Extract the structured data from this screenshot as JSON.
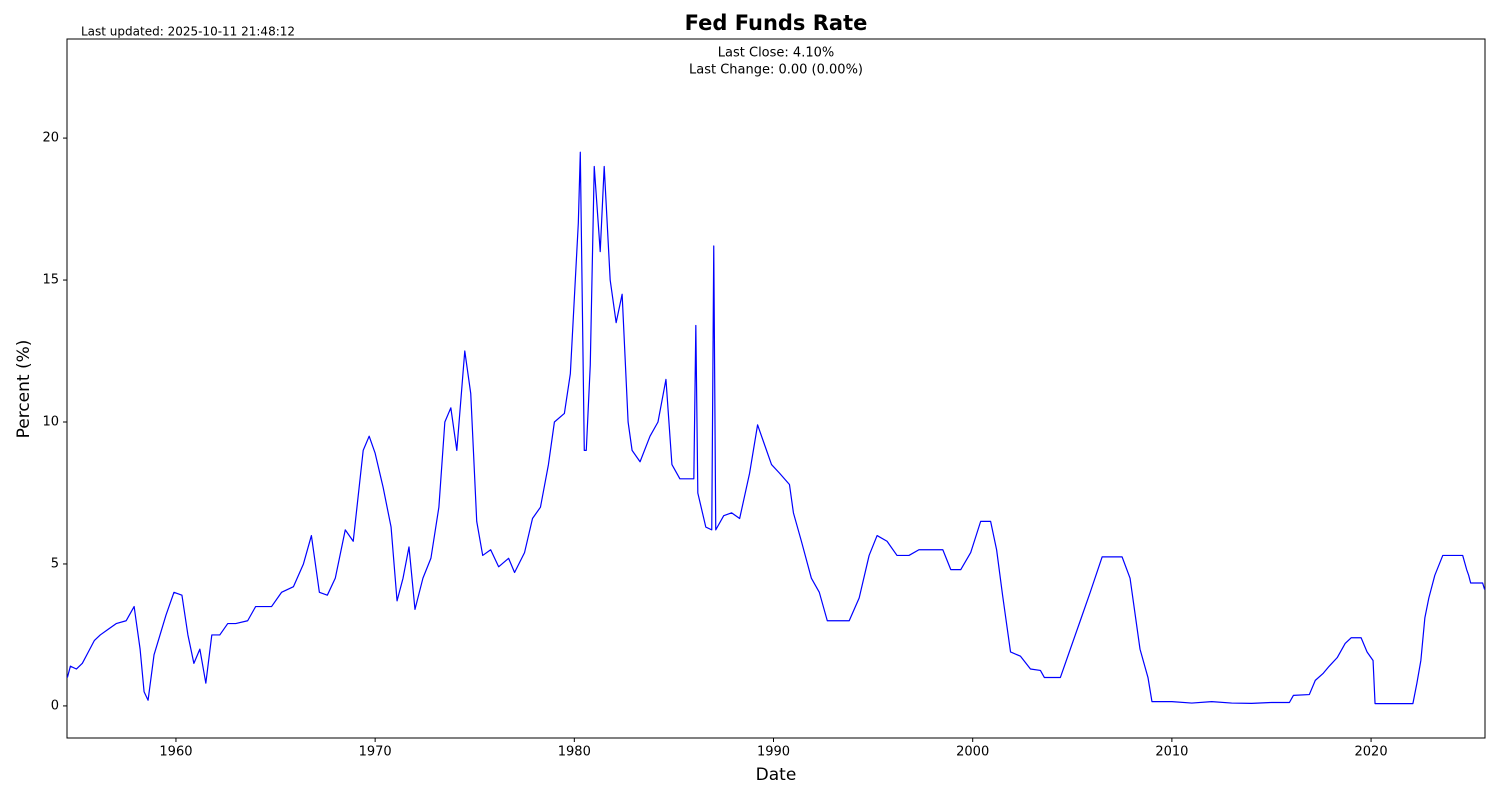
{
  "chart_data": {
    "type": "line",
    "title": "Fed Funds Rate",
    "subtitle": "Last updated: 2025-10-11 21:48:12",
    "annotations": [
      "Last Close: 4.10%",
      "Last Change: 0.00 (0.00%)"
    ],
    "x_label": "Date",
    "y_label": "Percent (%)",
    "xlim": [
      1954.53,
      2025.72
    ],
    "ylim": [
      -1.13,
      23.49
    ],
    "xticks": [
      1960,
      1970,
      1980,
      1990,
      2000,
      2010,
      2020
    ],
    "yticks": [
      0,
      5,
      10,
      15,
      20
    ],
    "grid": false,
    "x": [
      1954.55,
      1954.7,
      1955.0,
      1955.3,
      1955.6,
      1955.9,
      1956.2,
      1956.6,
      1957.0,
      1957.5,
      1957.9,
      1958.2,
      1958.4,
      1958.6,
      1958.9,
      1959.2,
      1959.5,
      1959.9,
      1960.3,
      1960.6,
      1960.9,
      1961.2,
      1961.5,
      1961.8,
      1962.2,
      1962.6,
      1963.0,
      1963.6,
      1964.0,
      1964.8,
      1965.3,
      1965.9,
      1966.4,
      1966.8,
      1967.2,
      1967.6,
      1968.0,
      1968.5,
      1968.9,
      1969.4,
      1969.7,
      1970.0,
      1970.4,
      1970.8,
      1971.1,
      1971.4,
      1971.7,
      1972.0,
      1972.4,
      1972.8,
      1973.2,
      1973.5,
      1973.8,
      1974.1,
      1974.5,
      1974.8,
      1975.1,
      1975.4,
      1975.8,
      1976.2,
      1976.7,
      1977.0,
      1977.5,
      1977.9,
      1978.3,
      1978.7,
      1979.0,
      1979.5,
      1979.8,
      1980.2,
      1980.3,
      1980.5,
      1980.6,
      1980.8,
      1981.0,
      1981.3,
      1981.5,
      1981.8,
      1982.1,
      1982.4,
      1982.7,
      1982.9,
      1983.3,
      1983.8,
      1984.2,
      1984.6,
      1984.9,
      1985.3,
      1985.8,
      1986.0,
      1986.1,
      1986.2,
      1986.6,
      1986.9,
      1987.0,
      1987.1,
      1987.5,
      1987.9,
      1988.3,
      1988.8,
      1989.2,
      1989.5,
      1989.9,
      1990.3,
      1990.8,
      1991.0,
      1991.4,
      1991.9,
      1992.3,
      1992.7,
      1993.2,
      1993.8,
      1994.3,
      1994.8,
      1995.2,
      1995.7,
      1996.2,
      1996.8,
      1997.3,
      1997.9,
      1998.5,
      1998.9,
      1999.4,
      1999.9,
      2000.4,
      2000.9,
      2001.2,
      2001.5,
      2001.9,
      2002.4,
      2002.9,
      2003.4,
      2003.6,
      2004.4,
      2004.9,
      2005.4,
      2005.9,
      2006.5,
      2007.5,
      2007.9,
      2008.2,
      2008.4,
      2008.8,
      2009.0,
      2010.0,
      2011.0,
      2012.0,
      2013.0,
      2014.0,
      2015.0,
      2015.9,
      2016.1,
      2016.9,
      2017.2,
      2017.6,
      2017.9,
      2018.3,
      2018.7,
      2019.0,
      2019.5,
      2019.8,
      2020.1,
      2020.2,
      2021.0,
      2022.1,
      2022.3,
      2022.5,
      2022.7,
      2022.9,
      2023.2,
      2023.6,
      2024.6,
      2024.8,
      2024.9,
      2025.0,
      2025.6,
      2025.7
    ],
    "series": [
      {
        "name": "Fed Funds Rate",
        "color": "#0000ff",
        "values": [
          1.0,
          1.4,
          1.3,
          1.5,
          1.9,
          2.3,
          2.5,
          2.7,
          2.9,
          3.0,
          3.5,
          2.0,
          0.5,
          0.2,
          1.8,
          2.5,
          3.2,
          4.0,
          3.9,
          2.5,
          1.5,
          2.0,
          0.8,
          2.5,
          2.5,
          2.9,
          2.9,
          3.0,
          3.5,
          3.5,
          4.0,
          4.2,
          5.0,
          6.0,
          4.0,
          3.9,
          4.5,
          6.2,
          5.8,
          9.0,
          9.5,
          8.9,
          7.7,
          6.3,
          3.7,
          4.5,
          5.6,
          3.4,
          4.5,
          5.2,
          7.0,
          10.0,
          10.5,
          9.0,
          12.5,
          11.0,
          6.5,
          5.3,
          5.5,
          4.9,
          5.2,
          4.7,
          5.4,
          6.6,
          7.0,
          8.5,
          10.0,
          10.3,
          11.7,
          17.0,
          19.5,
          9.0,
          9.0,
          12.0,
          19.0,
          16.0,
          19.0,
          15.0,
          13.5,
          14.5,
          10.0,
          9.0,
          8.6,
          9.5,
          10.0,
          11.5,
          8.5,
          8.0,
          8.0,
          8.0,
          13.4,
          7.5,
          6.3,
          6.2,
          16.2,
          6.2,
          6.7,
          6.8,
          6.6,
          8.2,
          9.9,
          9.3,
          8.5,
          8.2,
          7.8,
          6.8,
          5.8,
          4.5,
          4.0,
          3.0,
          3.0,
          3.0,
          3.8,
          5.3,
          6.0,
          5.8,
          5.3,
          5.3,
          5.5,
          5.5,
          5.5,
          4.8,
          4.8,
          5.4,
          6.5,
          6.5,
          5.5,
          3.9,
          1.9,
          1.75,
          1.3,
          1.25,
          1.0,
          1.0,
          2.0,
          3.0,
          4.0,
          5.25,
          5.25,
          4.5,
          3.0,
          2.0,
          1.0,
          0.15,
          0.15,
          0.1,
          0.15,
          0.1,
          0.09,
          0.12,
          0.12,
          0.37,
          0.4,
          0.9,
          1.15,
          1.4,
          1.7,
          2.2,
          2.4,
          2.4,
          1.9,
          1.6,
          0.08,
          0.08,
          0.08,
          0.8,
          1.6,
          3.1,
          3.8,
          4.6,
          5.3,
          5.3,
          4.8,
          4.6,
          4.33,
          4.33,
          4.1
        ]
      }
    ]
  }
}
